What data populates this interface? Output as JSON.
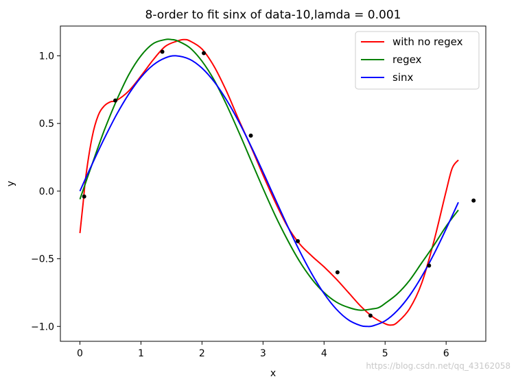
{
  "chart_data": {
    "type": "line",
    "title": "8-order to fit sinx of data-10,lamda = 0.001",
    "xlabel": "x",
    "ylabel": "y",
    "xlim": [
      -0.32,
      6.65
    ],
    "ylim": [
      -1.11,
      1.22
    ],
    "xticks": [
      0,
      1,
      2,
      3,
      4,
      5,
      6
    ],
    "yticks": [
      -1.0,
      -0.5,
      0.0,
      0.5,
      1.0
    ],
    "ytick_labels": [
      "−1.0",
      "−0.5",
      "0.0",
      "0.5",
      "1.0"
    ],
    "legend_position": "top-right",
    "series": [
      {
        "name": "with no regex",
        "color": "#ff0000",
        "x": [
          0.0,
          0.05,
          0.1,
          0.2,
          0.3,
          0.4,
          0.5,
          0.6,
          0.8,
          1.0,
          1.2,
          1.4,
          1.6,
          1.7,
          1.8,
          2.0,
          2.2,
          2.4,
          2.6,
          2.8,
          3.0,
          3.2,
          3.4,
          3.6,
          3.8,
          4.0,
          4.2,
          4.4,
          4.6,
          4.8,
          5.0,
          5.1,
          5.2,
          5.4,
          5.6,
          5.8,
          6.0,
          6.1,
          6.2
        ],
        "y": [
          -0.31,
          -0.1,
          0.12,
          0.4,
          0.56,
          0.63,
          0.66,
          0.67,
          0.74,
          0.85,
          0.97,
          1.07,
          1.11,
          1.12,
          1.11,
          1.05,
          0.92,
          0.74,
          0.53,
          0.33,
          0.12,
          -0.08,
          -0.26,
          -0.39,
          -0.48,
          -0.56,
          -0.65,
          -0.75,
          -0.85,
          -0.93,
          -0.98,
          -0.99,
          -0.97,
          -0.87,
          -0.68,
          -0.37,
          0.0,
          0.17,
          0.23
        ]
      },
      {
        "name": "regex",
        "color": "#008000",
        "x": [
          0.0,
          0.2,
          0.4,
          0.6,
          0.8,
          1.0,
          1.2,
          1.4,
          1.5,
          1.6,
          1.8,
          2.0,
          2.2,
          2.4,
          2.6,
          2.8,
          3.0,
          3.2,
          3.4,
          3.6,
          3.8,
          4.0,
          4.2,
          4.4,
          4.6,
          4.8,
          4.9,
          5.0,
          5.2,
          5.4,
          5.6,
          5.8,
          6.0,
          6.2
        ],
        "y": [
          -0.06,
          0.2,
          0.45,
          0.67,
          0.86,
          1.0,
          1.09,
          1.12,
          1.12,
          1.11,
          1.06,
          0.96,
          0.82,
          0.64,
          0.44,
          0.23,
          0.02,
          -0.18,
          -0.36,
          -0.52,
          -0.65,
          -0.75,
          -0.82,
          -0.86,
          -0.88,
          -0.87,
          -0.86,
          -0.83,
          -0.76,
          -0.66,
          -0.53,
          -0.4,
          -0.26,
          -0.14
        ]
      },
      {
        "name": "sinx",
        "color": "#0000ff",
        "x": [
          0.0,
          0.2,
          0.4,
          0.6,
          0.8,
          1.0,
          1.2,
          1.4,
          1.5708,
          1.8,
          2.0,
          2.2,
          2.4,
          2.6,
          2.8,
          3.0,
          3.1416,
          3.4,
          3.6,
          3.8,
          4.0,
          4.2,
          4.4,
          4.6,
          4.7124,
          4.8,
          5.0,
          5.2,
          5.4,
          5.6,
          5.8,
          6.0,
          6.2
        ],
        "y": [
          0.0,
          0.199,
          0.389,
          0.565,
          0.717,
          0.841,
          0.932,
          0.985,
          1.0,
          0.974,
          0.909,
          0.808,
          0.675,
          0.516,
          0.335,
          0.141,
          0.0,
          -0.256,
          -0.443,
          -0.612,
          -0.757,
          -0.872,
          -0.952,
          -0.994,
          -1.0,
          -0.996,
          -0.959,
          -0.883,
          -0.773,
          -0.631,
          -0.465,
          -0.279,
          -0.083
        ]
      },
      {
        "name": "data",
        "color": "#000000",
        "type": "scatter",
        "x": [
          0.07,
          0.58,
          1.35,
          2.03,
          2.8,
          3.57,
          4.22,
          4.76,
          5.72,
          6.45
        ],
        "y": [
          -0.04,
          0.67,
          1.03,
          1.02,
          0.41,
          -0.37,
          -0.6,
          -0.92,
          -0.55,
          -0.07
        ]
      }
    ]
  },
  "watermark": "https://blog.csdn.net/qq_43162058"
}
